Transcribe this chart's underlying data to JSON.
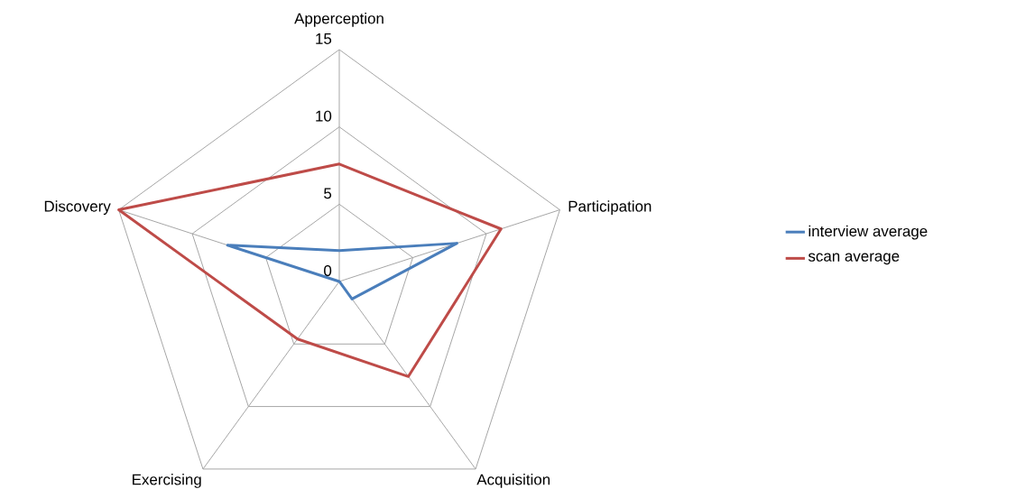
{
  "chart_data": {
    "type": "radar",
    "categories": [
      "Apperception",
      "Participation",
      "Acquisition",
      "Exercising",
      "Discovery"
    ],
    "series": [
      {
        "name": "interview average",
        "color": "#4a7ebb",
        "values": [
          2,
          8,
          1.4,
          0,
          7.6
        ]
      },
      {
        "name": "scan average",
        "color": "#be4b48",
        "values": [
          7.6,
          11,
          7.6,
          4.6,
          15
        ]
      }
    ],
    "ylim": [
      0,
      15
    ],
    "yticks": [
      0,
      5,
      10,
      15
    ],
    "legend": "right",
    "grid": true
  }
}
